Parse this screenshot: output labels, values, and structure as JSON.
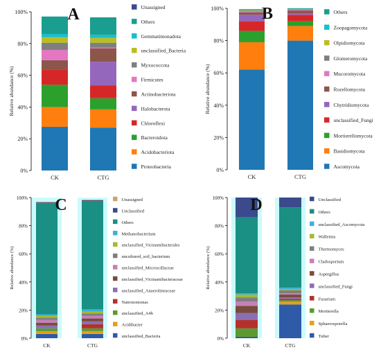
{
  "chart_data": [
    {
      "panel": "A",
      "type": "bar",
      "stacked": true,
      "ylabel": "Relative abundance (%)",
      "yticks": [
        "0%",
        "20%",
        "40%",
        "60%",
        "80%",
        "100%"
      ],
      "ylim": [
        0,
        100
      ],
      "categories": [
        "CK",
        "CTG"
      ],
      "series": [
        {
          "name": "Proteobacteria",
          "color": "#1f77b4",
          "values": [
            27.5,
            27
          ]
        },
        {
          "name": "Acidobacteriota",
          "color": "#ff7f0e",
          "values": [
            12.5,
            11.5
          ]
        },
        {
          "name": "Bacteroidota",
          "color": "#2ca02c",
          "values": [
            14,
            7
          ]
        },
        {
          "name": "Chloroflexi",
          "color": "#d62728",
          "values": [
            9.5,
            8
          ]
        },
        {
          "name": "Halobacterota",
          "color": "#9467bd",
          "values": [
            0,
            15
          ]
        },
        {
          "name": "Actinobacteriota",
          "color": "#8c564b",
          "values": [
            6,
            8.5
          ]
        },
        {
          "name": "Firmicutes",
          "color": "#e377c2",
          "values": [
            6.5,
            0.5
          ]
        },
        {
          "name": "Myxococcota",
          "color": "#7f7f7f",
          "values": [
            4.5,
            3
          ]
        },
        {
          "name": "unclassified_Bacteria",
          "color": "#bcbd22",
          "values": [
            3.5,
            3
          ]
        },
        {
          "name": "Gemmatimonadota",
          "color": "#17becf",
          "values": [
            2,
            2
          ]
        },
        {
          "name": "Others",
          "color": "#1a9e8f",
          "values": [
            11,
            11
          ]
        },
        {
          "name": "Unassigned",
          "color": "#3a4a8c",
          "values": [
            0,
            0
          ]
        }
      ]
    },
    {
      "panel": "B",
      "type": "bar",
      "stacked": true,
      "ylabel": "Relative abundance (%)",
      "yticks": [
        "0%",
        "20%",
        "40%",
        "60%",
        "80%",
        "100%"
      ],
      "ylim": [
        0,
        100
      ],
      "categories": [
        "CK",
        "CTG"
      ],
      "series": [
        {
          "name": "Ascomycota",
          "color": "#1f77b4",
          "values": [
            62,
            80
          ]
        },
        {
          "name": "Basidiomycota",
          "color": "#ff7f0e",
          "values": [
            17,
            9
          ]
        },
        {
          "name": "Mortierellomycota",
          "color": "#2ca02c",
          "values": [
            7,
            3
          ]
        },
        {
          "name": "unclassified_Fungi",
          "color": "#d62728",
          "values": [
            6,
            4
          ]
        },
        {
          "name": "Chytridiomycota",
          "color": "#9467bd",
          "values": [
            4,
            1
          ]
        },
        {
          "name": "Rozellomycota",
          "color": "#8c564b",
          "values": [
            1.5,
            1.5
          ]
        },
        {
          "name": "Mucoromycota",
          "color": "#e377c2",
          "values": [
            0.5,
            0.3
          ]
        },
        {
          "name": "Glomeromycota",
          "color": "#7f7f7f",
          "values": [
            0.5,
            0.5
          ]
        },
        {
          "name": "Olpidiomycota",
          "color": "#bcbd22",
          "values": [
            0.3,
            0.2
          ]
        },
        {
          "name": "Zoopagomycota",
          "color": "#17becf",
          "values": [
            0.2,
            0
          ]
        },
        {
          "name": "Others",
          "color": "#1a9e8f",
          "values": [
            0.5,
            0.5
          ]
        }
      ]
    },
    {
      "panel": "C",
      "type": "bar",
      "stacked": true,
      "ylabel": "Relative abundance (%)",
      "yticks": [
        "0%",
        "20%",
        "40%",
        "60%",
        "80%",
        "100%"
      ],
      "ylim": [
        0,
        100
      ],
      "categories": [
        "CK",
        "CTG"
      ],
      "series": [
        {
          "name": "unclassified_Bacteria",
          "color": "#2e5aa8",
          "values": [
            3,
            3
          ]
        },
        {
          "name": "Acidibacter",
          "color": "#e0a21a",
          "values": [
            2,
            2
          ]
        },
        {
          "name": "unclassified_A4b",
          "color": "#5b9a2f",
          "values": [
            2,
            2
          ]
        },
        {
          "name": "Natronomonas",
          "color": "#b5302c",
          "values": [
            0,
            3
          ]
        },
        {
          "name": "unclassified_Anaerolineaceae",
          "color": "#8a6fb3",
          "values": [
            2,
            2
          ]
        },
        {
          "name": "unclassified_Vicinamibacteraceae",
          "color": "#7a4a3a",
          "values": [
            2,
            2
          ]
        },
        {
          "name": "unclassified_Microscillaceae",
          "color": "#c77fb8",
          "values": [
            2,
            2
          ]
        },
        {
          "name": "uncultured_soil_bacterium",
          "color": "#7f7f7f",
          "values": [
            1.5,
            1.5
          ]
        },
        {
          "name": "unclassified_Vicinamibacterales",
          "color": "#a8b832",
          "values": [
            1.5,
            1.5
          ]
        },
        {
          "name": "Methanobacterium",
          "color": "#3bb3d8",
          "values": [
            1,
            1.5
          ]
        },
        {
          "name": "Others",
          "color": "#1a8f84",
          "values": [
            79,
            77
          ]
        },
        {
          "name": "Unclassified",
          "color": "#3a4a8c",
          "values": [
            0.5,
            0.5
          ]
        },
        {
          "name": "Unassigned",
          "color": "#c9a56a",
          "values": [
            0.5,
            0.5
          ]
        }
      ]
    },
    {
      "panel": "D",
      "type": "bar",
      "stacked": true,
      "ylabel": "Relative abundance (%)",
      "yticks": [
        "0%",
        "20%",
        "40%",
        "60%",
        "80%",
        "100%"
      ],
      "ylim": [
        0,
        100
      ],
      "categories": [
        "CK",
        "CTG"
      ],
      "series": [
        {
          "name": "Tuber",
          "color": "#2e5aa8",
          "values": [
            1,
            24
          ]
        },
        {
          "name": "Sphaerosporella",
          "color": "#e0a21a",
          "values": [
            0,
            2
          ]
        },
        {
          "name": "Mortierella",
          "color": "#5b9a2f",
          "values": [
            6,
            1
          ]
        },
        {
          "name": "Fusarium",
          "color": "#b5302c",
          "values": [
            6,
            1
          ]
        },
        {
          "name": "unclassified_Fungi",
          "color": "#8a6fb3",
          "values": [
            5,
            1
          ]
        },
        {
          "name": "Aspergillus",
          "color": "#7a4a3a",
          "values": [
            5,
            2
          ]
        },
        {
          "name": "Cladosporium",
          "color": "#c77fb8",
          "values": [
            3,
            1
          ]
        },
        {
          "name": "Thermomyces",
          "color": "#7f7f7f",
          "values": [
            3,
            2
          ]
        },
        {
          "name": "Wallemia",
          "color": "#a8b832",
          "values": [
            2,
            1
          ]
        },
        {
          "name": "unclassified_Ascomycota",
          "color": "#3bb3d8",
          "values": [
            1,
            1
          ]
        },
        {
          "name": "Others",
          "color": "#1a8f84",
          "values": [
            54,
            57
          ]
        },
        {
          "name": "Unclassified",
          "color": "#3a4a8c",
          "values": [
            14,
            7
          ]
        }
      ]
    }
  ]
}
